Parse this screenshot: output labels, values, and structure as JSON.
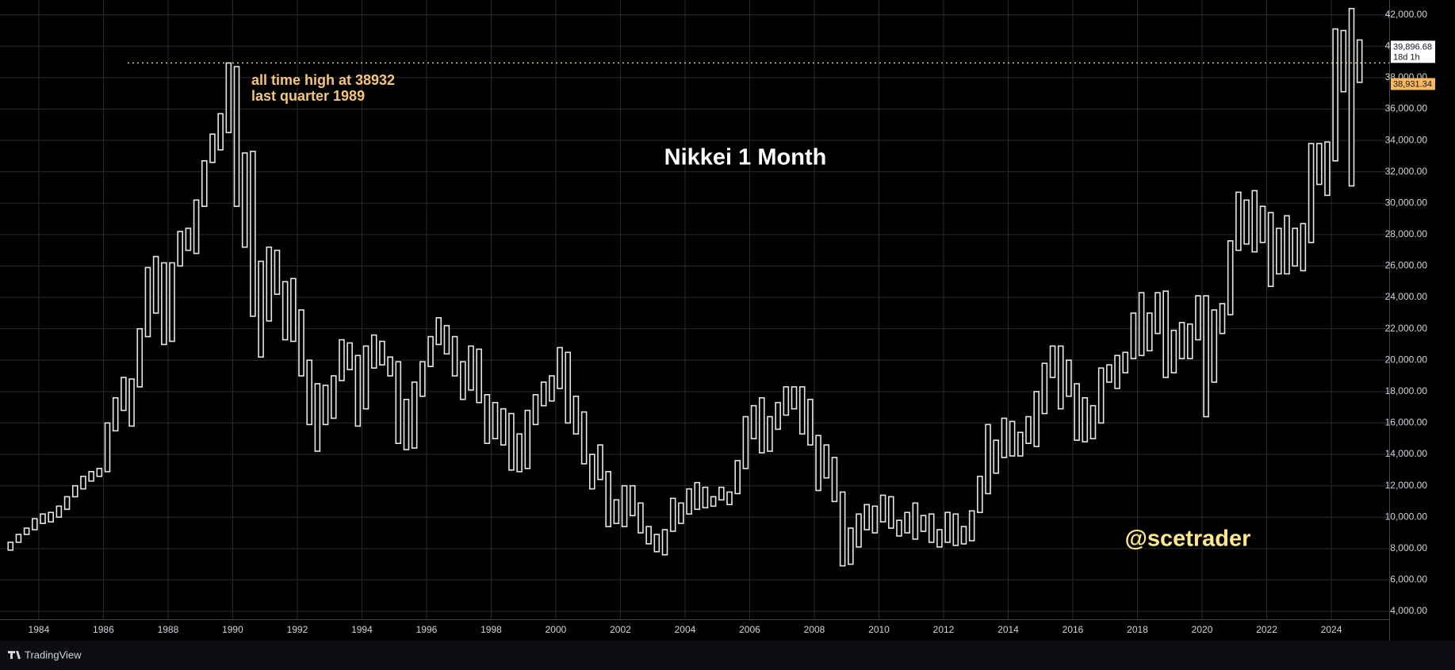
{
  "chart_data": {
    "type": "bar-range",
    "title": "Nikkei 1 Month",
    "annotation": [
      "all time high at 38932",
      "last quarter 1989"
    ],
    "watermark": "@scetrader",
    "brand": "TradingView",
    "current_price": {
      "value": 39896.68,
      "label": "39,896.68"
    },
    "countdown": "18d 1h",
    "ath_line": {
      "value": 38931.34,
      "label": "38,931.34",
      "start": 1986.75
    },
    "color": "#e6e6e6",
    "grid": true,
    "xlim": [
      1982.8,
      2025.79
    ],
    "ylim": [
      3495,
      42945
    ],
    "xticks": [
      1984,
      1986,
      1988,
      1990,
      1992,
      1994,
      1996,
      1998,
      2000,
      2002,
      2004,
      2006,
      2008,
      2010,
      2012,
      2014,
      2016,
      2018,
      2020,
      2022,
      2024
    ],
    "yticks": [
      {
        "value": 4000,
        "label": "4,000.00"
      },
      {
        "value": 6000,
        "label": "6,000.00"
      },
      {
        "value": 8000,
        "label": "8,000.00"
      },
      {
        "value": 10000,
        "label": "10,000.00"
      },
      {
        "value": 12000,
        "label": "12,000.00"
      },
      {
        "value": 14000,
        "label": "14,000.00"
      },
      {
        "value": 16000,
        "label": "16,000.00"
      },
      {
        "value": 18000,
        "label": "18,000.00"
      },
      {
        "value": 20000,
        "label": "20,000.00"
      },
      {
        "value": 22000,
        "label": "22,000.00"
      },
      {
        "value": 24000,
        "label": "24,000.00"
      },
      {
        "value": 26000,
        "label": "26,000.00"
      },
      {
        "value": 28000,
        "label": "28,000.00"
      },
      {
        "value": 30000,
        "label": "30,000.00"
      },
      {
        "value": 32000,
        "label": "32,000.00"
      },
      {
        "value": 34000,
        "label": "34,000.00"
      },
      {
        "value": 36000,
        "label": "36,000.00"
      },
      {
        "value": 38000,
        "label": "38,000.00"
      },
      {
        "value": 40000,
        "label": "40,000.00"
      },
      {
        "value": 42000,
        "label": "42,000.00"
      }
    ],
    "x": [
      1983.125,
      1983.375,
      1983.625,
      1983.875,
      1984.125,
      1984.375,
      1984.625,
      1984.875,
      1985.125,
      1985.375,
      1985.625,
      1985.875,
      1986.125,
      1986.375,
      1986.625,
      1986.875,
      1987.125,
      1987.375,
      1987.625,
      1987.875,
      1988.125,
      1988.375,
      1988.625,
      1988.875,
      1989.125,
      1989.375,
      1989.625,
      1989.875,
      1990.125,
      1990.375,
      1990.625,
      1990.875,
      1991.125,
      1991.375,
      1991.625,
      1991.875,
      1992.125,
      1992.375,
      1992.625,
      1992.875,
      1993.125,
      1993.375,
      1993.625,
      1993.875,
      1994.125,
      1994.375,
      1994.625,
      1994.875,
      1995.125,
      1995.375,
      1995.625,
      1995.875,
      1996.125,
      1996.375,
      1996.625,
      1996.875,
      1997.125,
      1997.375,
      1997.625,
      1997.875,
      1998.125,
      1998.375,
      1998.625,
      1998.875,
      1999.125,
      1999.375,
      1999.625,
      1999.875,
      2000.125,
      2000.375,
      2000.625,
      2000.875,
      2001.125,
      2001.375,
      2001.625,
      2001.875,
      2002.125,
      2002.375,
      2002.625,
      2002.875,
      2003.125,
      2003.375,
      2003.625,
      2003.875,
      2004.125,
      2004.375,
      2004.625,
      2004.875,
      2005.125,
      2005.375,
      2005.625,
      2005.875,
      2006.125,
      2006.375,
      2006.625,
      2006.875,
      2007.125,
      2007.375,
      2007.625,
      2007.875,
      2008.125,
      2008.375,
      2008.625,
      2008.875,
      2009.125,
      2009.375,
      2009.625,
      2009.875,
      2010.125,
      2010.375,
      2010.625,
      2010.875,
      2011.125,
      2011.375,
      2011.625,
      2011.875,
      2012.125,
      2012.375,
      2012.625,
      2012.875,
      2013.125,
      2013.375,
      2013.625,
      2013.875,
      2014.125,
      2014.375,
      2014.625,
      2014.875,
      2015.125,
      2015.375,
      2015.625,
      2015.875,
      2016.125,
      2016.375,
      2016.625,
      2016.875,
      2017.125,
      2017.375,
      2017.625,
      2017.875,
      2018.125,
      2018.375,
      2018.625,
      2018.875,
      2019.125,
      2019.375,
      2019.625,
      2019.875,
      2020.125,
      2020.375,
      2020.625,
      2020.875,
      2021.125,
      2021.375,
      2021.625,
      2021.875,
      2022.125,
      2022.375,
      2022.625,
      2022.875,
      2023.125,
      2023.375,
      2023.625,
      2023.875,
      2024.125,
      2024.375,
      2024.625,
      2024.875
    ],
    "low": [
      7900,
      8400,
      8900,
      9200,
      9600,
      9700,
      10000,
      10500,
      11300,
      11800,
      12300,
      12600,
      12900,
      15500,
      16800,
      15800,
      18300,
      21500,
      23000,
      21000,
      21200,
      26000,
      27000,
      26800,
      29800,
      32600,
      33400,
      34500,
      29800,
      27200,
      22800,
      20200,
      22500,
      24200,
      21300,
      21200,
      19000,
      15900,
      14200,
      15900,
      16300,
      18700,
      19400,
      15800,
      16900,
      19500,
      19700,
      19000,
      14700,
      14300,
      14400,
      17700,
      19600,
      21000,
      20400,
      19000,
      17500,
      18100,
      17300,
      14700,
      15000,
      14600,
      13000,
      12900,
      13100,
      15900,
      17100,
      17400,
      18200,
      16000,
      15300,
      13400,
      11800,
      12400,
      9400,
      9600,
      9400,
      10100,
      9000,
      8300,
      7800,
      7600,
      9100,
      9600,
      10200,
      10500,
      10600,
      10700,
      11100,
      10800,
      11500,
      13100,
      15000,
      14100,
      14200,
      15600,
      16500,
      16900,
      15300,
      14600,
      11700,
      12500,
      11000,
      6900,
      7000,
      8100,
      9200,
      9000,
      9700,
      9300,
      8800,
      9000,
      8600,
      9100,
      8400,
      8100,
      8400,
      8200,
      8300,
      8500,
      10300,
      11500,
      12800,
      13800,
      13900,
      13900,
      14700,
      14500,
      16600,
      18900,
      16900,
      17700,
      14900,
      14800,
      15000,
      16000,
      18600,
      18200,
      19200,
      20100,
      20300,
      20600,
      21700,
      18900,
      19200,
      20100,
      20100,
      21300,
      16400,
      18600,
      21700,
      22900,
      27000,
      27400,
      26900,
      27500,
      24700,
      25500,
      25500,
      26000,
      25700,
      27500,
      31200,
      30500,
      32700,
      37100,
      31100,
      37700
    ],
    "high": [
      8400,
      8900,
      9300,
      9900,
      10200,
      10300,
      10700,
      11300,
      12000,
      12600,
      12900,
      13100,
      16000,
      17600,
      18900,
      18800,
      22000,
      25900,
      26600,
      26200,
      26200,
      28200,
      28400,
      30200,
      32700,
      34400,
      35700,
      38932,
      38700,
      33200,
      33300,
      26300,
      27200,
      27000,
      25000,
      25200,
      23200,
      20000,
      18500,
      18400,
      19000,
      21300,
      21100,
      20300,
      20900,
      21600,
      21200,
      20200,
      19900,
      17500,
      18600,
      19900,
      21500,
      22700,
      22200,
      21500,
      19900,
      20900,
      20700,
      17800,
      17300,
      16900,
      16600,
      15300,
      16800,
      17800,
      18600,
      19000,
      20800,
      20500,
      17700,
      16700,
      14000,
      14600,
      12900,
      11100,
      12000,
      12000,
      10900,
      9400,
      8900,
      9200,
      11200,
      10900,
      11800,
      12200,
      11900,
      11300,
      11900,
      11600,
      13600,
      16400,
      17100,
      17600,
      16400,
      17300,
      18300,
      18300,
      18300,
      17500,
      15200,
      14600,
      13800,
      11600,
      9300,
      10200,
      10800,
      10700,
      11400,
      11300,
      9800,
      10300,
      10900,
      10100,
      10200,
      9200,
      10300,
      10200,
      9400,
      10400,
      12600,
      15900,
      14900,
      16300,
      16100,
      15400,
      16400,
      18000,
      19800,
      20900,
      20900,
      20000,
      18500,
      17600,
      17100,
      19500,
      19700,
      20300,
      20500,
      23000,
      24300,
      23000,
      24300,
      24400,
      21900,
      22400,
      22300,
      24100,
      24100,
      23200,
      23600,
      27600,
      30700,
      30200,
      30800,
      29800,
      29400,
      28400,
      29200,
      28400,
      28700,
      33800,
      33800,
      33900,
      41100,
      41000,
      42400,
      40400
    ]
  }
}
